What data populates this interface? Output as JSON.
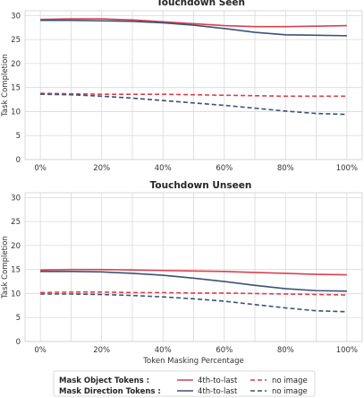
{
  "colors": {
    "red": "#d9414f",
    "blue": "#3b5277"
  },
  "legend": {
    "rows": [
      {
        "label": "Mask Object Tokens :",
        "color": "#d9414f",
        "solid": "4th-to-last",
        "dashed": "no image"
      },
      {
        "label": "Mask Direction Tokens :",
        "color": "#3b5277",
        "solid": "4th-to-last",
        "dashed": "no image"
      }
    ]
  },
  "chart_data": [
    {
      "type": "line",
      "title": "Touchdown Seen",
      "xlabel": "",
      "ylabel": "Task Completion",
      "x": [
        0,
        10,
        20,
        30,
        40,
        50,
        60,
        70,
        80,
        90,
        100
      ],
      "xticks": [
        0,
        20,
        40,
        60,
        80,
        100
      ],
      "xtick_labels": [
        "0%",
        "20%",
        "40%",
        "60%",
        "80%",
        "100%"
      ],
      "yticks": [
        0,
        5,
        10,
        15,
        20,
        25,
        30
      ],
      "xlim": [
        -5,
        105
      ],
      "ylim": [
        0,
        31
      ],
      "grid": true,
      "series": [
        {
          "key": "object-4th",
          "color": "#d9414f",
          "dash": false,
          "values": [
            29.2,
            29.3,
            29.3,
            29.1,
            28.7,
            28.3,
            27.9,
            27.7,
            27.7,
            27.8,
            27.9
          ]
        },
        {
          "key": "object-noimg",
          "color": "#d9414f",
          "dash": true,
          "values": [
            13.8,
            13.7,
            13.6,
            13.6,
            13.6,
            13.5,
            13.4,
            13.3,
            13.2,
            13.2,
            13.2
          ]
        },
        {
          "key": "direction-4th",
          "color": "#3b5277",
          "dash": false,
          "values": [
            29.0,
            29.0,
            28.9,
            28.8,
            28.5,
            28.0,
            27.3,
            26.5,
            26.0,
            25.9,
            25.8
          ]
        },
        {
          "key": "direction-noimg",
          "color": "#3b5277",
          "dash": true,
          "values": [
            13.6,
            13.5,
            13.2,
            12.8,
            12.3,
            11.8,
            11.3,
            10.7,
            10.1,
            9.6,
            9.4
          ]
        }
      ]
    },
    {
      "type": "line",
      "title": "Touchdown Unseen",
      "xlabel": "Token Masking Percentage",
      "ylabel": "Task Completion",
      "x": [
        0,
        10,
        20,
        30,
        40,
        50,
        60,
        70,
        80,
        90,
        100
      ],
      "xticks": [
        0,
        20,
        40,
        60,
        80,
        100
      ],
      "xtick_labels": [
        "0%",
        "20%",
        "40%",
        "60%",
        "80%",
        "100%"
      ],
      "yticks": [
        0,
        5,
        10,
        15,
        20,
        25,
        30
      ],
      "xlim": [
        -5,
        105
      ],
      "ylim": [
        0,
        31
      ],
      "grid": true,
      "series": [
        {
          "key": "object-4th",
          "color": "#d9414f",
          "dash": false,
          "values": [
            14.9,
            15.0,
            15.0,
            14.9,
            14.8,
            14.7,
            14.6,
            14.4,
            14.2,
            14.0,
            13.9
          ]
        },
        {
          "key": "object-noimg",
          "color": "#d9414f",
          "dash": true,
          "values": [
            10.2,
            10.3,
            10.3,
            10.2,
            10.2,
            10.1,
            10.1,
            10.0,
            9.9,
            9.8,
            9.7
          ]
        },
        {
          "key": "direction-4th",
          "color": "#3b5277",
          "dash": false,
          "values": [
            14.6,
            14.6,
            14.5,
            14.2,
            13.8,
            13.2,
            12.5,
            11.7,
            11.0,
            10.6,
            10.5
          ]
        },
        {
          "key": "direction-noimg",
          "color": "#3b5277",
          "dash": true,
          "values": [
            9.9,
            9.9,
            9.8,
            9.6,
            9.3,
            8.9,
            8.4,
            7.7,
            7.0,
            6.4,
            6.2
          ]
        }
      ]
    }
  ]
}
